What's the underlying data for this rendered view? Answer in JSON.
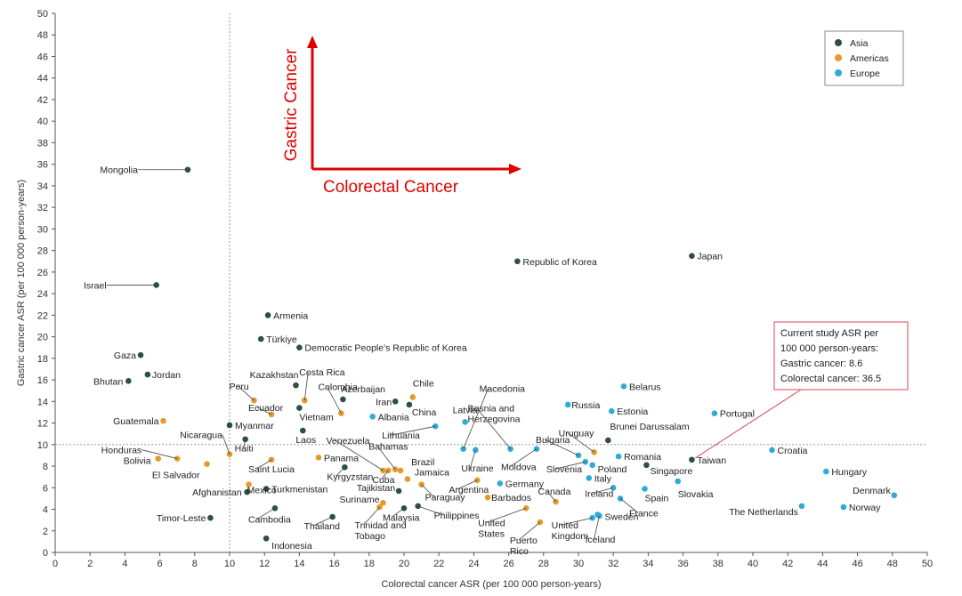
{
  "chart_data": {
    "type": "scatter",
    "xlabel": "Colorectal cancer ASR (per 100 000 person-years)",
    "ylabel": "Gastric cancer ASR (per 100 000 person-years)",
    "xlim": [
      0,
      50
    ],
    "ylim": [
      0,
      50
    ],
    "xticks": [
      "0",
      "2",
      "4",
      "6",
      "8",
      "10",
      "12",
      "14",
      "16",
      "18",
      "20",
      "22",
      "24",
      "26",
      "28",
      "30",
      "32",
      "34",
      "36",
      "38",
      "40",
      "42",
      "44",
      "46",
      "48",
      "50"
    ],
    "yticks": [
      "0",
      "2",
      "4",
      "6",
      "8",
      "10",
      "12",
      "14",
      "16",
      "18",
      "20",
      "22",
      "24",
      "26",
      "28",
      "30",
      "32",
      "34",
      "36",
      "38",
      "40",
      "42",
      "44",
      "46",
      "48",
      "50"
    ],
    "grid": false,
    "legend_position": "top-right",
    "reference_lines": {
      "x": 10,
      "y": 10
    },
    "series": [
      {
        "name": "Asia",
        "color": "#2d4f44",
        "points": [
          {
            "label": "Mongolia",
            "x": 7.6,
            "y": 35.5
          },
          {
            "label": "Israel",
            "x": 5.8,
            "y": 24.8
          },
          {
            "label": "Gaza",
            "x": 4.9,
            "y": 18.3
          },
          {
            "label": "Jordan",
            "x": 5.3,
            "y": 16.5
          },
          {
            "label": "Bhutan",
            "x": 4.2,
            "y": 15.9
          },
          {
            "label": "Armenia",
            "x": 12.2,
            "y": 22.0
          },
          {
            "label": "Türkiye",
            "x": 11.8,
            "y": 19.8
          },
          {
            "label": "Democratic People's Republic of Korea",
            "x": 14.0,
            "y": 19.0
          },
          {
            "label": "Kazakhstan",
            "x": 13.8,
            "y": 15.5
          },
          {
            "label": "Azerbaijan",
            "x": 16.5,
            "y": 14.2
          },
          {
            "label": "Iran",
            "x": 19.5,
            "y": 14.0
          },
          {
            "label": "China",
            "x": 20.3,
            "y": 13.7
          },
          {
            "label": "Vietnam",
            "x": 14.0,
            "y": 13.4
          },
          {
            "label": "Laos",
            "x": 14.2,
            "y": 11.3
          },
          {
            "label": "Myanmar",
            "x": 10.0,
            "y": 11.8
          },
          {
            "label": "Haiti",
            "x": 10.9,
            "y": 10.5
          },
          {
            "label": "Kyrgyzstan",
            "x": 16.6,
            "y": 7.9
          },
          {
            "label": "Afghanistan",
            "x": 11.0,
            "y": 5.6
          },
          {
            "label": "Turkmenistan",
            "x": 12.1,
            "y": 5.9
          },
          {
            "label": "Tajikistan",
            "x": 19.7,
            "y": 5.7
          },
          {
            "label": "Cambodia",
            "x": 12.6,
            "y": 4.1
          },
          {
            "label": "Thailand",
            "x": 15.9,
            "y": 3.3
          },
          {
            "label": "Malaysia",
            "x": 20.0,
            "y": 4.1
          },
          {
            "label": "Philippines",
            "x": 20.8,
            "y": 4.3
          },
          {
            "label": "Indonesia",
            "x": 12.1,
            "y": 1.3
          },
          {
            "label": "Timor-Leste",
            "x": 8.9,
            "y": 3.2
          },
          {
            "label": "Republic of Korea",
            "x": 26.5,
            "y": 27.0
          },
          {
            "label": "Japan",
            "x": 36.5,
            "y": 27.5
          },
          {
            "label": "Brunei Darussalam",
            "x": 31.7,
            "y": 10.4
          },
          {
            "label": "Taiwan",
            "x": 36.5,
            "y": 8.6
          },
          {
            "label": "Singapore",
            "x": 33.9,
            "y": 8.1
          }
        ]
      },
      {
        "name": "Americas",
        "color": "#e39b2d",
        "points": [
          {
            "label": "Costa Rica",
            "x": 14.3,
            "y": 14.1
          },
          {
            "label": "Colombia",
            "x": 16.4,
            "y": 12.9
          },
          {
            "label": "Peru",
            "x": 11.4,
            "y": 14.1
          },
          {
            "label": "Ecuador",
            "x": 12.4,
            "y": 12.8
          },
          {
            "label": "Chile",
            "x": 20.5,
            "y": 14.4
          },
          {
            "label": "Guatemala",
            "x": 6.2,
            "y": 12.2
          },
          {
            "label": "Honduras",
            "x": 7.0,
            "y": 8.7
          },
          {
            "label": "Bolivia",
            "x": 5.9,
            "y": 8.7
          },
          {
            "label": "El Salvador",
            "x": 8.7,
            "y": 8.2
          },
          {
            "label": "Nicaragua",
            "x": 10.0,
            "y": 9.1
          },
          {
            "label": "Saint Lucia",
            "x": 12.4,
            "y": 8.6
          },
          {
            "label": "Mexico",
            "x": 11.1,
            "y": 6.3
          },
          {
            "label": "Panama",
            "x": 15.1,
            "y": 8.8
          },
          {
            "label": "Venezuela",
            "x": 18.8,
            "y": 7.6
          },
          {
            "label": "Bahamas",
            "x": 19.5,
            "y": 7.7
          },
          {
            "label": "Cuba",
            "x": 19.1,
            "y": 7.6
          },
          {
            "label": "Brazil",
            "x": 19.8,
            "y": 7.6
          },
          {
            "label": "Jamaica",
            "x": 20.2,
            "y": 6.8
          },
          {
            "label": "Paraguay",
            "x": 21.0,
            "y": 6.3
          },
          {
            "label": "Argentina",
            "x": 24.2,
            "y": 6.7
          },
          {
            "label": "Barbados",
            "x": 24.8,
            "y": 5.1
          },
          {
            "label": "Suriname",
            "x": 18.8,
            "y": 4.6
          },
          {
            "label": "Trinidad and Tobago",
            "x": 18.6,
            "y": 4.2
          },
          {
            "label": "United States",
            "x": 27.0,
            "y": 4.1
          },
          {
            "label": "Puerto Rico",
            "x": 27.8,
            "y": 2.8
          },
          {
            "label": "Canada",
            "x": 28.7,
            "y": 4.7
          },
          {
            "label": "Uruguay",
            "x": 30.9,
            "y": 9.3
          }
        ]
      },
      {
        "name": "Europe",
        "color": "#32aad6",
        "points": [
          {
            "label": "Albania",
            "x": 18.2,
            "y": 12.6
          },
          {
            "label": "Latvia",
            "x": 23.5,
            "y": 12.1
          },
          {
            "label": "Lithuania",
            "x": 21.8,
            "y": 11.7
          },
          {
            "label": "Macedonia",
            "x": 23.4,
            "y": 9.6
          },
          {
            "label": "Ukraine",
            "x": 24.1,
            "y": 9.5
          },
          {
            "label": "Bosnia and Herzegovina",
            "x": 26.1,
            "y": 9.6
          },
          {
            "label": "Moldova",
            "x": 27.6,
            "y": 9.6
          },
          {
            "label": "Russia",
            "x": 29.4,
            "y": 13.7
          },
          {
            "label": "Belarus",
            "x": 32.6,
            "y": 15.4
          },
          {
            "label": "Estonia",
            "x": 31.9,
            "y": 13.1
          },
          {
            "label": "Portugal",
            "x": 37.8,
            "y": 12.9
          },
          {
            "label": "Bulgaria",
            "x": 30.0,
            "y": 9.0
          },
          {
            "label": "Slovenia",
            "x": 30.4,
            "y": 8.4
          },
          {
            "label": "Poland",
            "x": 30.8,
            "y": 8.1
          },
          {
            "label": "Romania",
            "x": 32.3,
            "y": 8.9
          },
          {
            "label": "Germany",
            "x": 25.5,
            "y": 6.4
          },
          {
            "label": "Italy",
            "x": 30.6,
            "y": 6.9
          },
          {
            "label": "Ireland",
            "x": 32.0,
            "y": 6.0
          },
          {
            "label": "Spain",
            "x": 33.8,
            "y": 5.9
          },
          {
            "label": "France",
            "x": 32.4,
            "y": 5.0
          },
          {
            "label": "Slovakia",
            "x": 35.7,
            "y": 6.6
          },
          {
            "label": "Sweden",
            "x": 31.1,
            "y": 3.5
          },
          {
            "label": "United Kingdom",
            "x": 30.8,
            "y": 3.2
          },
          {
            "label": "Iceland",
            "x": 31.2,
            "y": 3.4
          },
          {
            "label": "Croatia",
            "x": 41.1,
            "y": 9.5
          },
          {
            "label": "Hungary",
            "x": 44.2,
            "y": 7.5
          },
          {
            "label": "Denmark",
            "x": 48.1,
            "y": 5.3
          },
          {
            "label": "Norway",
            "x": 45.2,
            "y": 4.2
          },
          {
            "label": "The Netherlands",
            "x": 42.8,
            "y": 4.3
          }
        ]
      }
    ],
    "annotations": {
      "arrow_x_label": "Colorectal Cancer",
      "arrow_y_label": "Gastric Cancer",
      "callout_lines": [
        "Current study ASR per",
        "100 000 person-years:",
        "Gastric cancer: 8.6",
        "Colorectal cancer: 36.5"
      ]
    }
  }
}
